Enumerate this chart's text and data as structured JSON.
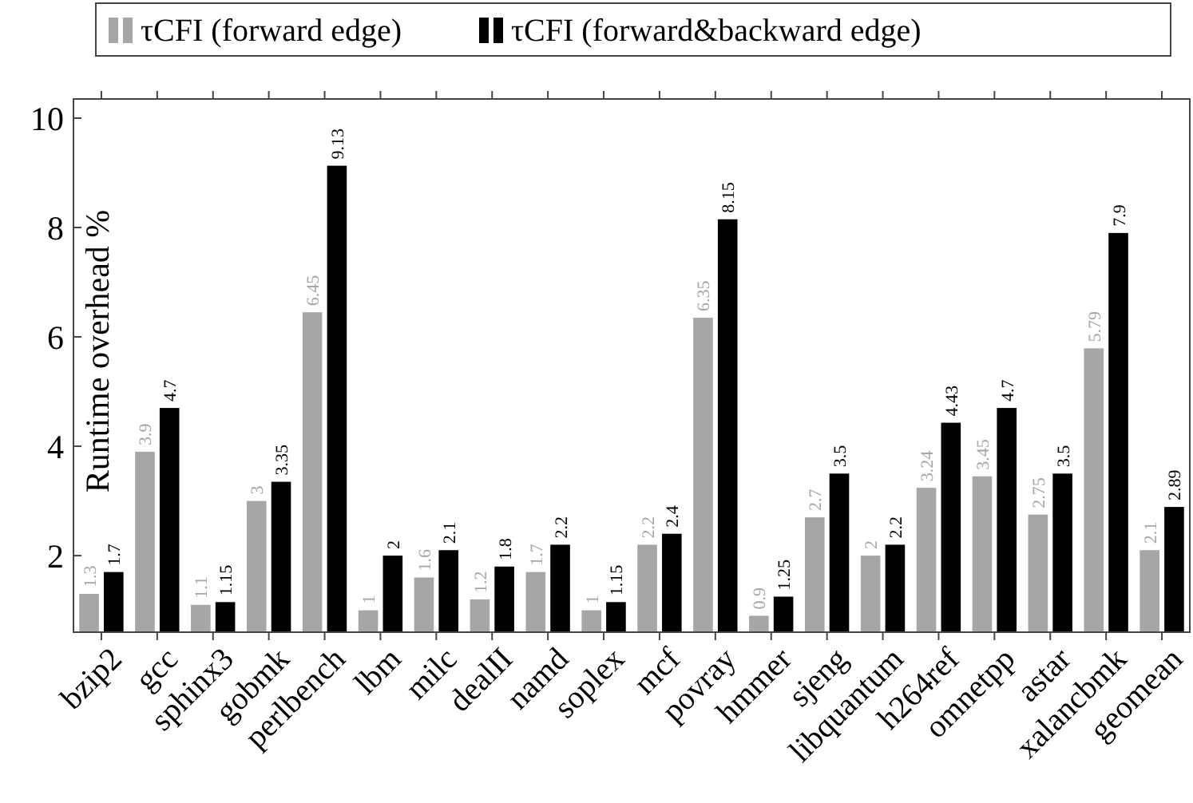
{
  "chart_data": {
    "type": "bar",
    "ylabel": "Runtime overhead %",
    "categories": [
      "bzip2",
      "gcc",
      "sphinx3",
      "gobmk",
      "perlbench",
      "lbm",
      "milc",
      "dealII",
      "namd",
      "soplex",
      "mcf",
      "povray",
      "hmmer",
      "sjeng",
      "libquantum",
      "h264ref",
      "omnetpp",
      "astar",
      "xalancbmk",
      "geomean"
    ],
    "series": [
      {
        "name": "τCFI (forward edge)",
        "color": "#a6a6a6",
        "values": [
          1.3,
          3.9,
          1.1,
          3,
          6.45,
          1,
          1.6,
          1.2,
          1.7,
          1,
          2.2,
          6.35,
          0.9,
          2.7,
          2,
          3.24,
          3.45,
          2.75,
          5.79,
          2.1
        ]
      },
      {
        "name": "τCFI (forward&backward edge)",
        "color": "#000000",
        "values": [
          1.7,
          4.7,
          1.15,
          3.35,
          9.13,
          2,
          2.1,
          1.8,
          2.2,
          1.15,
          2.4,
          8.15,
          1.25,
          3.5,
          2.2,
          4.43,
          4.7,
          3.5,
          7.9,
          2.89
        ]
      }
    ],
    "ylim": [
      0.6,
      10.35
    ],
    "yticks": [
      2,
      4,
      6,
      8,
      10
    ],
    "data_labels": true,
    "legend": "top",
    "grid": false
  }
}
